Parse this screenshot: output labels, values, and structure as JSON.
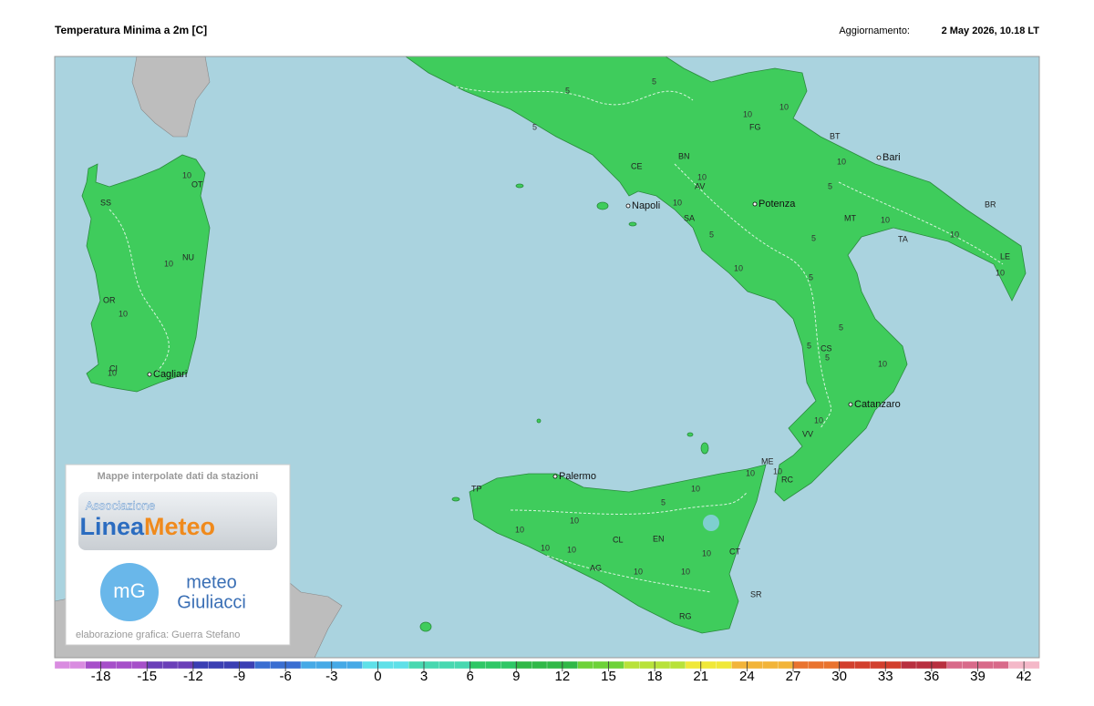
{
  "header": {
    "title": "Temperatura Minima a 2m [C]",
    "update_label": "Aggiornamento:",
    "update_value": "2 May 2026, 10.18 LT"
  },
  "cities": [
    "Bari",
    "Napoli",
    "Potenza",
    "Catanzaro",
    "Palermo",
    "Cagliari"
  ],
  "province_codes": [
    "SS",
    "OT",
    "NU",
    "OR",
    "CI",
    "FG",
    "BT",
    "BR",
    "LE",
    "TA",
    "MT",
    "CE",
    "BN",
    "AV",
    "SA",
    "CS",
    "VV",
    "RC",
    "ME",
    "TP",
    "CL",
    "EN",
    "AG",
    "CT",
    "SR",
    "RG"
  ],
  "contour_labels": [
    10,
    10,
    10,
    10,
    5,
    5,
    5,
    10,
    10,
    10,
    5,
    10,
    10,
    10,
    5,
    10,
    5,
    5,
    5,
    5,
    5,
    10,
    10,
    10,
    10,
    10,
    10,
    10,
    10,
    10,
    5,
    10,
    10,
    10,
    10,
    10
  ],
  "logo": {
    "caption": "Mappe interpolate dati da stazioni",
    "association": "Associazione",
    "brand_a": "Linea",
    "brand_b": "Meteo",
    "badge": "mG",
    "partner_a": "meteo",
    "partner_b": "Giuliacci",
    "credit": "elaborazione grafica: Guerra Stefano"
  },
  "colorbar": {
    "range": [
      -21,
      43
    ],
    "ticks": [
      -18,
      -15,
      -12,
      -9,
      -6,
      -3,
      0,
      3,
      6,
      9,
      12,
      15,
      18,
      21,
      24,
      27,
      30,
      33,
      36,
      39,
      42
    ]
  }
}
